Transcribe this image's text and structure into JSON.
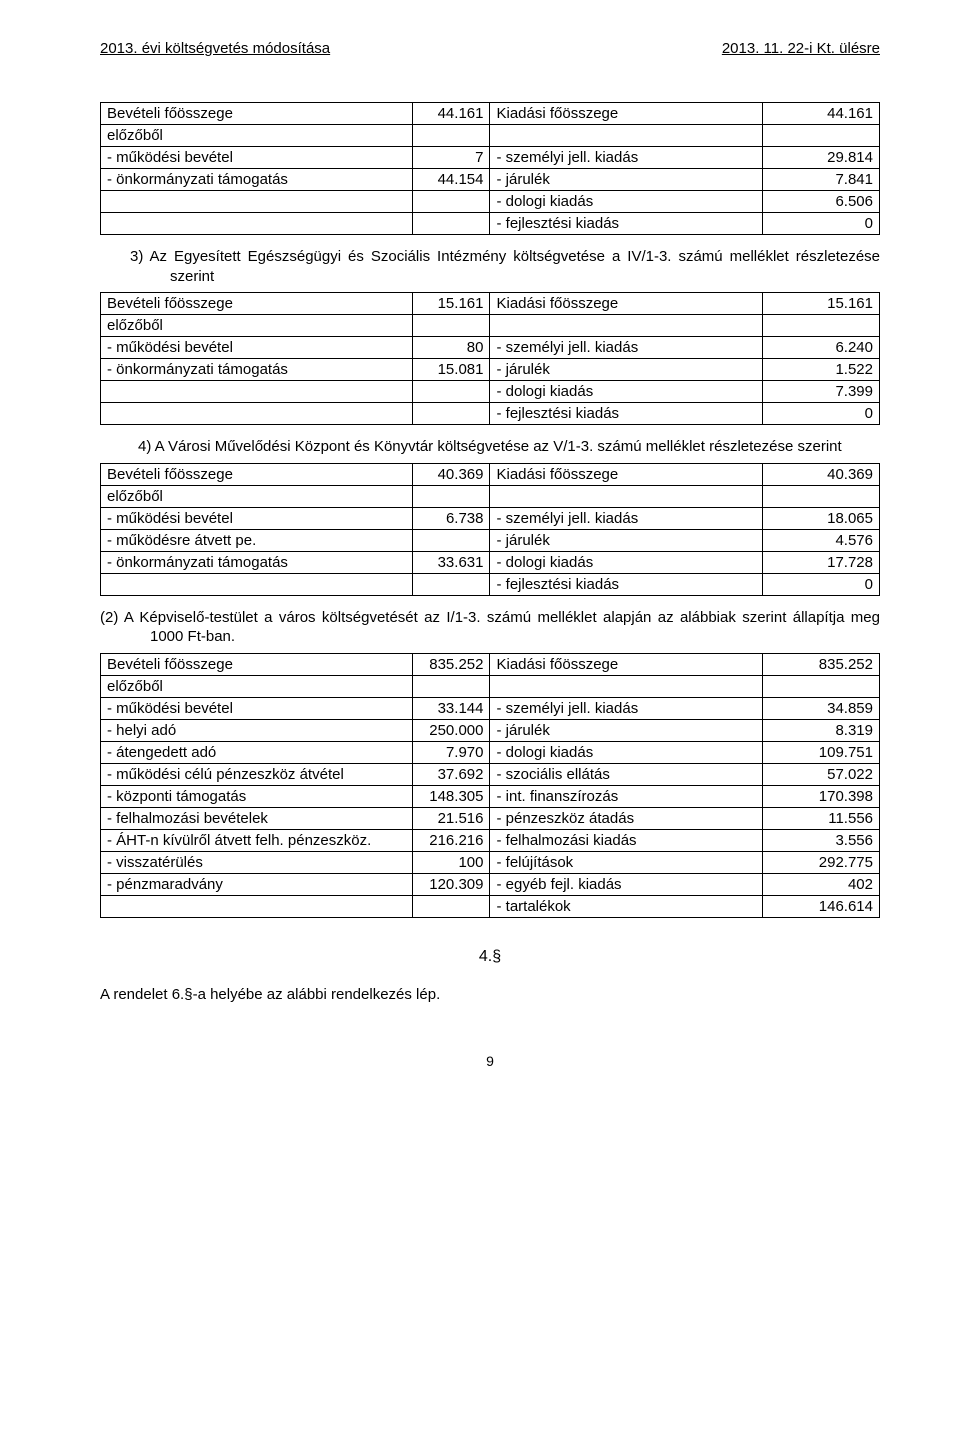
{
  "header": {
    "left": "2013. évi költségvetés módosítása",
    "right": "2013. 11. 22-i Kt. ülésre"
  },
  "table1": {
    "r0": {
      "a": "Bevételi főösszege",
      "b": "44.161",
      "c": "Kiadási főösszege",
      "d": "44.161"
    },
    "r1": {
      "a": "előzőből",
      "b": "",
      "c": "",
      "d": ""
    },
    "r2": {
      "a": "- működési bevétel",
      "b": "7",
      "c": "- személyi jell. kiadás",
      "d": "29.814"
    },
    "r3": {
      "a": "- önkormányzati támogatás",
      "b": "44.154",
      "c": "- járulék",
      "d": "7.841"
    },
    "r4": {
      "a": "",
      "b": "",
      "c": "- dologi kiadás",
      "d": "6.506"
    },
    "r5": {
      "a": "",
      "b": "",
      "c": "- fejlesztési kiadás",
      "d": "0"
    }
  },
  "para3": "3) Az Egyesített Egészségügyi és Szociális Intézmény  költségvetése a IV/1-3. számú melléklet részletezése szerint",
  "table3": {
    "r0": {
      "a": "Bevételi főösszege",
      "b": "15.161",
      "c": "Kiadási főösszege",
      "d": "15.161"
    },
    "r1": {
      "a": "előzőből",
      "b": "",
      "c": "",
      "d": ""
    },
    "r2": {
      "a": "- működési bevétel",
      "b": "80",
      "c": "- személyi jell. kiadás",
      "d": "6.240"
    },
    "r3": {
      "a": "- önkormányzati támogatás",
      "b": "15.081",
      "c": "- járulék",
      "d": "1.522"
    },
    "r4": {
      "a": "",
      "b": "",
      "c": "- dologi kiadás",
      "d": "7.399"
    },
    "r5": {
      "a": "",
      "b": "",
      "c": "- fejlesztési kiadás",
      "d": "0"
    }
  },
  "para4": "4) A Városi Művelődési Központ és Könyvtár költségvetése az V/1-3. számú melléklet részletezése szerint",
  "table4": {
    "r0": {
      "a": "Bevételi főösszege",
      "b": "40.369",
      "c": "Kiadási főösszege",
      "d": "40.369"
    },
    "r1": {
      "a": "előzőből",
      "b": "",
      "c": "",
      "d": ""
    },
    "r2": {
      "a": "- működési bevétel",
      "b": "6.738",
      "c": "- személyi jell. kiadás",
      "d": "18.065"
    },
    "r3": {
      "a": "- működésre átvett pe.",
      "b": "",
      "c": "- járulék",
      "d": "4.576"
    },
    "r4": {
      "a": "- önkormányzati támogatás",
      "b": "33.631",
      "c": "- dologi kiadás",
      "d": "17.728"
    },
    "r5": {
      "a": "",
      "b": "",
      "c": "- fejlesztési kiadás",
      "d": "0"
    }
  },
  "para2": "(2) A Képviselő-testület  a város költségvetését az  I/1-3. számú melléklet  alapján az alábbiak  szerint állapítja meg 1000 Ft-ban.",
  "table5": {
    "r0": {
      "a": "Bevételi főösszege",
      "b": "835.252",
      "c": "Kiadási főösszege",
      "d": "835.252"
    },
    "r1": {
      "a": "előzőből",
      "b": "",
      "c": "",
      "d": ""
    },
    "r2": {
      "a": "- működési bevétel",
      "b": "33.144",
      "c": "- személyi jell. kiadás",
      "d": "34.859"
    },
    "r3": {
      "a": "- helyi adó",
      "b": "250.000",
      "c": "- járulék",
      "d": "8.319"
    },
    "r4": {
      "a": "- átengedett adó",
      "b": "7.970",
      "c": "- dologi kiadás",
      "d": "109.751"
    },
    "r5": {
      "a": "- működési célú pénzeszköz átvétel",
      "b": "37.692",
      "c": "- szociális ellátás",
      "d": "57.022"
    },
    "r6": {
      "a": "- központi támogatás",
      "b": "148.305",
      "c": "- int. finanszírozás",
      "d": "170.398"
    },
    "r7": {
      "a": "- felhalmozási bevételek",
      "b": "21.516",
      "c": "- pénzeszköz átadás",
      "d": "11.556"
    },
    "r8": {
      "a": "- ÁHT-n kívülről átvett felh. pénzeszköz.",
      "b": "216.216",
      "c": "- felhalmozási kiadás",
      "d": "3.556"
    },
    "r9": {
      "a": "- visszatérülés",
      "b": "100",
      "c": "- felújítások",
      "d": "292.775"
    },
    "r10": {
      "a": "- pénzmaradvány",
      "b": "120.309",
      "c": "- egyéb fejl. kiadás",
      "d": "402"
    },
    "r11": {
      "a": "",
      "b": "",
      "c": "- tartalékok",
      "d": "146.614"
    }
  },
  "sectionNum": "4.§",
  "footerLine": "A rendelet 6.§-a helyébe az alábbi rendelkezés lép.",
  "pageNum": "9"
}
